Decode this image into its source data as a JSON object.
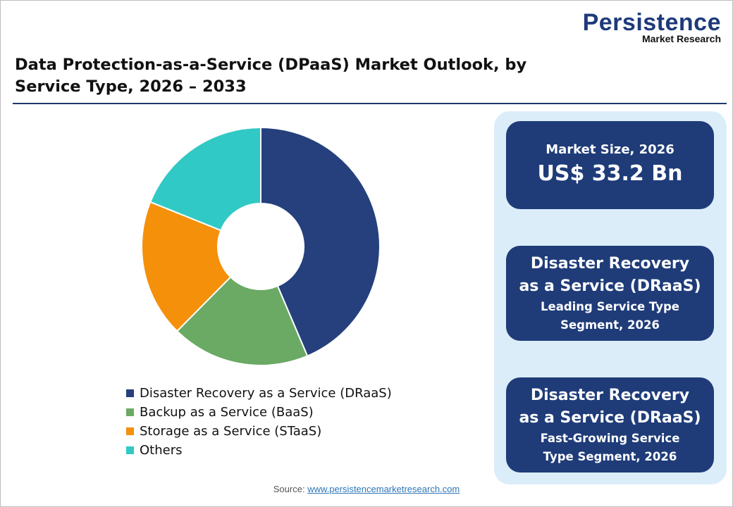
{
  "logo": {
    "line1": "Persistence",
    "line2": "Market Research"
  },
  "title": "Data Protection-as-a-Service (DPaaS) Market Outlook, by Service Type, 2026 – 2033",
  "chart_data": {
    "type": "pie",
    "donut": true,
    "categories": [
      "Disaster Recovery as a Service (DRaaS)",
      "Backup as a Service (BaaS)",
      "Storage as a Service (STaaS)",
      "Others"
    ],
    "values": [
      43.6,
      18.8,
      18.7,
      18.9
    ],
    "unit": "%",
    "colors": [
      "#25407d",
      "#6aaa64",
      "#f5900b",
      "#31c9c5"
    ],
    "legend_placement": "bottom"
  },
  "cards": [
    {
      "line1": "Market Size, 2026",
      "line2": "US$ 33.2 Bn"
    },
    {
      "line1": "Disaster Recovery as a Service (DRaaS)",
      "line2": "Leading Service Type Segment, 2026"
    },
    {
      "line1": "Disaster Recovery as a Service (DRaaS)",
      "line2": "Fast-Growing Service Type Segment, 2026"
    }
  ],
  "source": {
    "label": "Source:",
    "link": "www.persistencemarketresearch.com"
  }
}
